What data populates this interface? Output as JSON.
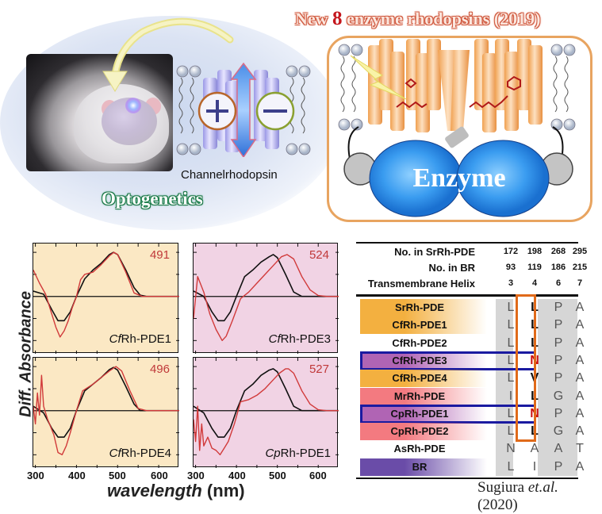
{
  "optogenetics": {
    "title": "Optogenetics",
    "channel_label": "Channelrhodopsin",
    "plus_icon": "plus-ion-icon",
    "minus_icon": "minus-ion-icon"
  },
  "enzyme_panel": {
    "title_prefix": "New ",
    "title_number": "8",
    "title_suffix": " enzyme rhodopsins (2019)",
    "enzyme_label": "Enzyme"
  },
  "chart_data": [
    {
      "type": "line",
      "title": "CfRh-PDE1",
      "name_italic_prefix": "Cf",
      "name_rest": "Rh-PDE1",
      "peak_label": "491",
      "background": "#fbe8c4",
      "xlim": [
        295,
        650
      ],
      "xticks": [
        300,
        400,
        500,
        600
      ],
      "series": [
        {
          "name": "reference",
          "color": "#111111",
          "x": [
            295,
            320,
            340,
            355,
            370,
            385,
            400,
            420,
            440,
            460,
            480,
            490,
            500,
            520,
            540,
            555,
            570,
            600,
            650
          ],
          "y": [
            0.12,
            0.05,
            -0.3,
            -0.55,
            -0.55,
            -0.35,
            0.0,
            0.4,
            0.6,
            0.75,
            0.95,
            1.0,
            0.95,
            0.6,
            0.2,
            0.03,
            0.0,
            0.0,
            0.0
          ]
        },
        {
          "name": "measured",
          "color": "#d13a3a",
          "x": [
            295,
            310,
            325,
            340,
            350,
            360,
            370,
            380,
            390,
            400,
            410,
            420,
            440,
            460,
            480,
            491,
            500,
            520,
            540,
            560,
            600,
            650
          ],
          "y": [
            0.6,
            0.3,
            0.05,
            -0.4,
            -0.7,
            -0.92,
            -0.78,
            -0.55,
            -0.25,
            0.0,
            0.38,
            0.5,
            0.55,
            0.72,
            0.92,
            1.0,
            0.95,
            0.55,
            0.08,
            0.0,
            0.0,
            0.0
          ]
        }
      ],
      "ylabel": "Diff. Absorbance"
    },
    {
      "type": "line",
      "title": "CfRh-PDE3",
      "name_italic_prefix": "Cf",
      "name_rest": "Rh-PDE3",
      "peak_label": "524",
      "background": "#f1d3e4",
      "xlim": [
        295,
        650
      ],
      "xticks": [
        300,
        400,
        500,
        600
      ],
      "series": [
        {
          "name": "reference",
          "color": "#111111",
          "x": [
            295,
            320,
            340,
            355,
            370,
            385,
            400,
            420,
            440,
            460,
            480,
            490,
            500,
            520,
            540,
            560,
            600,
            650
          ],
          "y": [
            0.12,
            0.0,
            -0.35,
            -0.55,
            -0.55,
            -0.35,
            0.0,
            0.45,
            0.6,
            0.78,
            0.9,
            0.95,
            0.88,
            0.5,
            0.1,
            0.0,
            0.0,
            0.0
          ]
        },
        {
          "name": "measured",
          "color": "#d13a3a",
          "x": [
            295,
            305,
            320,
            335,
            350,
            365,
            375,
            390,
            410,
            430,
            450,
            470,
            490,
            510,
            524,
            540,
            560,
            580,
            600,
            620,
            650
          ],
          "y": [
            -0.5,
            0.45,
            0.1,
            -0.4,
            -0.75,
            -1.0,
            -0.9,
            -0.55,
            -0.05,
            0.1,
            0.3,
            0.5,
            0.7,
            0.9,
            0.95,
            0.85,
            0.45,
            0.15,
            0.02,
            0.0,
            0.0
          ]
        }
      ]
    },
    {
      "type": "line",
      "title": "CfRh-PDE4",
      "name_italic_prefix": "Cf",
      "name_rest": "Rh-PDE4",
      "peak_label": "496",
      "background": "#fbe8c4",
      "xlim": [
        295,
        650
      ],
      "xticks": [
        300,
        400,
        500,
        600
      ],
      "series": [
        {
          "name": "reference",
          "color": "#111111",
          "x": [
            295,
            320,
            340,
            355,
            370,
            385,
            400,
            420,
            440,
            460,
            480,
            490,
            500,
            520,
            540,
            555,
            570,
            600,
            650
          ],
          "y": [
            0.1,
            -0.05,
            -0.4,
            -0.6,
            -0.6,
            -0.4,
            0.0,
            0.45,
            0.6,
            0.75,
            0.93,
            0.98,
            0.92,
            0.55,
            0.15,
            0.0,
            0.0,
            0.0,
            0.0
          ]
        },
        {
          "name": "measured",
          "color": "#d13a3a",
          "x": [
            295,
            300,
            305,
            310,
            315,
            320,
            330,
            345,
            355,
            365,
            375,
            385,
            400,
            415,
            440,
            460,
            480,
            496,
            510,
            530,
            550,
            570,
            600,
            650
          ],
          "y": [
            0.1,
            -0.3,
            0.4,
            -0.1,
            0.8,
            0.1,
            -0.2,
            -0.55,
            -0.95,
            -1.0,
            -0.8,
            -0.5,
            0.0,
            0.45,
            0.6,
            0.75,
            0.9,
            1.0,
            0.9,
            0.45,
            0.05,
            0.0,
            0.0,
            0.0
          ]
        }
      ]
    },
    {
      "type": "line",
      "title": "CpRh-PDE1",
      "name_italic_prefix": "Cp",
      "name_rest": "Rh-PDE1",
      "peak_label": "527",
      "background": "#f1d3e4",
      "xlim": [
        295,
        650
      ],
      "xticks": [
        300,
        400,
        500,
        600
      ],
      "series": [
        {
          "name": "reference",
          "color": "#111111",
          "x": [
            295,
            320,
            340,
            355,
            370,
            385,
            400,
            420,
            440,
            460,
            480,
            490,
            500,
            520,
            540,
            560,
            600,
            650
          ],
          "y": [
            0.1,
            -0.05,
            -0.4,
            -0.6,
            -0.6,
            -0.4,
            0.0,
            0.45,
            0.6,
            0.8,
            0.92,
            0.95,
            0.88,
            0.5,
            0.1,
            0.0,
            0.0,
            0.0
          ]
        },
        {
          "name": "measured",
          "color": "#d13a3a",
          "x": [
            295,
            300,
            305,
            310,
            315,
            320,
            330,
            340,
            350,
            360,
            370,
            380,
            395,
            410,
            430,
            450,
            470,
            490,
            505,
            520,
            527,
            540,
            560,
            580,
            600,
            620,
            650
          ],
          "y": [
            -0.2,
            -0.7,
            0.1,
            -0.9,
            -0.3,
            -0.8,
            -0.6,
            -0.85,
            -0.9,
            -1.0,
            -0.85,
            -0.7,
            -0.3,
            0.2,
            0.25,
            0.35,
            0.5,
            0.7,
            0.85,
            0.95,
            0.95,
            0.85,
            0.45,
            0.15,
            0.02,
            0.0,
            0.0
          ]
        }
      ]
    }
  ],
  "plots_axes": {
    "ylabel": "Diff. Absorbance",
    "xlabel_italic": "wavelength",
    "xlabel_unit": " (nm)",
    "xtick_labels": [
      "300",
      "400",
      "500",
      "600"
    ]
  },
  "alignment_table": {
    "header_rows": [
      {
        "label": "No. in SrRh-PDE",
        "values": [
          "172",
          "198",
          "268",
          "295"
        ]
      },
      {
        "label": "No. in BR",
        "values": [
          "93",
          "119",
          "186",
          "215"
        ]
      },
      {
        "label": "Transmembrane Helix",
        "values": [
          "3",
          "4",
          "6",
          "7"
        ]
      }
    ],
    "rows": [
      {
        "name": "SrRh-PDE",
        "color": "#f3b040",
        "residues": [
          "L",
          "L",
          "P",
          "A"
        ],
        "highlight": "none"
      },
      {
        "name": "CfRh-PDE1",
        "color": "#f3b040",
        "residues": [
          "L",
          "L",
          "P",
          "A"
        ],
        "highlight": "none"
      },
      {
        "name": "CfRh-PDE2",
        "color": "#ffffff",
        "residues": [
          "L",
          "L",
          "P",
          "A"
        ],
        "highlight": "none"
      },
      {
        "name": "CfRh-PDE3",
        "color": "#b064b4",
        "residues": [
          "L",
          "N",
          "P",
          "A"
        ],
        "highlight": "blue"
      },
      {
        "name": "CfRh-PDE4",
        "color": "#f3b040",
        "residues": [
          "L",
          "V",
          "P",
          "A"
        ],
        "highlight": "none"
      },
      {
        "name": "MrRh-PDE",
        "color": "#f37a80",
        "residues": [
          "I",
          "L",
          "G",
          "A"
        ],
        "highlight": "none"
      },
      {
        "name": "CpRh-PDE1",
        "color": "#b064b4",
        "residues": [
          "L",
          "N",
          "P",
          "A"
        ],
        "highlight": "blue"
      },
      {
        "name": "CpRh-PDE2",
        "color": "#f37a80",
        "residues": [
          "L",
          "L",
          "G",
          "A"
        ],
        "highlight": "none"
      },
      {
        "name": "AsRh-PDE",
        "color": "#ffffff",
        "residues": [
          "N",
          "A",
          "A",
          "T"
        ],
        "highlight": "none"
      },
      {
        "name": "BR",
        "color": "#6a4ca8",
        "residues": [
          "L",
          "I",
          "P",
          "A"
        ],
        "highlight": "none"
      }
    ],
    "highlight_column": "4"
  },
  "citation": {
    "author": "Sugiura ",
    "etal": "et.al.",
    "year": " (2020)"
  }
}
